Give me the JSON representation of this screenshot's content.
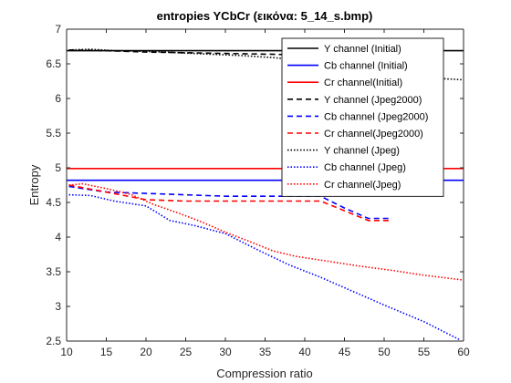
{
  "chart_data": {
    "type": "line",
    "title": "entropies YCbCr (εικόνα: 5_14_s.bmp)",
    "xlabel": "Compression ratio",
    "ylabel": "Entropy",
    "xlim": [
      10,
      60
    ],
    "ylim": [
      2.5,
      7
    ],
    "xticks": [
      "10",
      "15",
      "20",
      "25",
      "30",
      "35",
      "40",
      "45",
      "50",
      "55",
      "60"
    ],
    "yticks": [
      "2.5",
      "3",
      "3.5",
      "4",
      "4.5",
      "5",
      "5.5",
      "6",
      "6.5",
      "7"
    ],
    "grid": false,
    "legend_position": "top-right",
    "series": [
      {
        "name": "Y channel (Initial)",
        "color": "#000000",
        "dash": "solid",
        "points": [
          [
            10,
            6.69
          ],
          [
            60,
            6.69
          ]
        ]
      },
      {
        "name": "Cb channel (Initial)",
        "color": "#0000ff",
        "dash": "solid",
        "points": [
          [
            10,
            4.82
          ],
          [
            60,
            4.82
          ]
        ]
      },
      {
        "name": "Cr channel(Initial)",
        "color": "#ff0000",
        "dash": "solid",
        "points": [
          [
            10,
            4.99
          ],
          [
            60,
            4.99
          ]
        ]
      },
      {
        "name": "Y channel (Jpeg2000)",
        "color": "#000000",
        "dash": "dashed",
        "points": [
          [
            10.3,
            6.7
          ],
          [
            15,
            6.69
          ],
          [
            20,
            6.67
          ],
          [
            25,
            6.66
          ],
          [
            30,
            6.65
          ],
          [
            35,
            6.64
          ],
          [
            40,
            6.63
          ],
          [
            42,
            6.62
          ],
          [
            45,
            6.58
          ],
          [
            48,
            6.55
          ],
          [
            51,
            6.54
          ]
        ]
      },
      {
        "name": "Cb channel (Jpeg2000)",
        "color": "#0000ff",
        "dash": "dashed",
        "points": [
          [
            10.3,
            4.73
          ],
          [
            15,
            4.65
          ],
          [
            20,
            4.63
          ],
          [
            25,
            4.61
          ],
          [
            30,
            4.59
          ],
          [
            35,
            4.59
          ],
          [
            40,
            4.59
          ],
          [
            42,
            4.59
          ],
          [
            45,
            4.42
          ],
          [
            48,
            4.27
          ],
          [
            51,
            4.27
          ]
        ]
      },
      {
        "name": "Cr channel(Jpeg2000)",
        "color": "#ff0000",
        "dash": "dashed",
        "points": [
          [
            10.3,
            4.75
          ],
          [
            15,
            4.65
          ],
          [
            20,
            4.54
          ],
          [
            25,
            4.52
          ],
          [
            30,
            4.52
          ],
          [
            35,
            4.52
          ],
          [
            40,
            4.52
          ],
          [
            42,
            4.52
          ],
          [
            45,
            4.38
          ],
          [
            48,
            4.24
          ],
          [
            51,
            4.24
          ]
        ]
      },
      {
        "name": "Y channel (Jpeg)",
        "color": "#000000",
        "dash": "dotted",
        "points": [
          [
            10.3,
            6.7
          ],
          [
            13,
            6.71
          ],
          [
            16,
            6.69
          ],
          [
            20,
            6.68
          ],
          [
            24,
            6.66
          ],
          [
            28,
            6.64
          ],
          [
            32,
            6.62
          ],
          [
            36,
            6.59
          ],
          [
            40,
            6.55
          ],
          [
            45,
            6.45
          ],
          [
            50,
            6.36
          ],
          [
            55,
            6.3
          ],
          [
            60,
            6.27
          ]
        ]
      },
      {
        "name": "Cb channel (Jpeg)",
        "color": "#0000ff",
        "dash": "dotted",
        "points": [
          [
            10.3,
            4.61
          ],
          [
            13,
            4.6
          ],
          [
            16,
            4.52
          ],
          [
            20,
            4.45
          ],
          [
            23,
            4.24
          ],
          [
            26,
            4.17
          ],
          [
            30,
            4.05
          ],
          [
            34,
            3.82
          ],
          [
            38,
            3.6
          ],
          [
            42,
            3.42
          ],
          [
            46,
            3.22
          ],
          [
            50,
            3.02
          ],
          [
            55,
            2.78
          ],
          [
            59.5,
            2.52
          ]
        ]
      },
      {
        "name": "Cr channel(Jpeg)",
        "color": "#ff0000",
        "dash": "dotted",
        "points": [
          [
            10.3,
            4.75
          ],
          [
            12,
            4.77
          ],
          [
            15,
            4.7
          ],
          [
            18,
            4.62
          ],
          [
            21,
            4.47
          ],
          [
            24,
            4.35
          ],
          [
            27,
            4.22
          ],
          [
            30,
            4.07
          ],
          [
            33,
            3.94
          ],
          [
            36,
            3.8
          ],
          [
            39,
            3.72
          ],
          [
            43,
            3.65
          ],
          [
            47,
            3.58
          ],
          [
            51,
            3.52
          ],
          [
            55,
            3.45
          ],
          [
            60,
            3.38
          ]
        ]
      }
    ]
  }
}
